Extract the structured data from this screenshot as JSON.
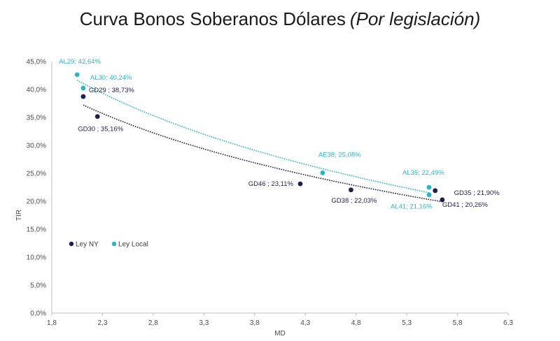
{
  "title": "Curva Bonos Soberanos Dólares",
  "subtitle": "(Por legislación)",
  "colors": {
    "ny": "#1c1f4f",
    "local": "#29b4c8",
    "axis": "#bfbfbf"
  },
  "chart_data": {
    "type": "scatter",
    "title": "Curva Bonos Soberanos Dólares (Por legislación)",
    "xlabel": "MD",
    "ylabel": "TIR",
    "xlim": [
      1.8,
      6.3
    ],
    "ylim": [
      0,
      45
    ],
    "x_ticks": [
      "1,8",
      "2,3",
      "2,8",
      "3,3",
      "3,8",
      "4,3",
      "4,8",
      "5,3",
      "5,8",
      "6,3"
    ],
    "y_ticks": [
      "0,0%",
      "5,0%",
      "10,0%",
      "15,0%",
      "20,0%",
      "25,0%",
      "30,0%",
      "35,0%",
      "40,0%",
      "45,0%"
    ],
    "legend_position": "left-middle",
    "grid": false,
    "series": [
      {
        "name": "Ley NY",
        "color": "#1c1f4f",
        "trendline": "dotted",
        "points": [
          {
            "x": 2.11,
            "y": 38.73,
            "label": "GD29 ; 38,73%"
          },
          {
            "x": 2.25,
            "y": 35.16,
            "label": "GD30 ; 35,16%"
          },
          {
            "x": 4.25,
            "y": 23.11,
            "label": "GD46 ; 23,11%"
          },
          {
            "x": 4.75,
            "y": 22.03,
            "label": "GD38 ; 22,03%"
          },
          {
            "x": 5.58,
            "y": 21.9,
            "label": "GD35 ; 21,90%"
          },
          {
            "x": 5.65,
            "y": 20.26,
            "label": "GD41 ; 20,26%"
          }
        ]
      },
      {
        "name": "Ley Local",
        "color": "#29b4c8",
        "trendline": "dotted",
        "points": [
          {
            "x": 2.05,
            "y": 42.64,
            "label": "AL29; 42,64%"
          },
          {
            "x": 2.11,
            "y": 40.24,
            "label": "AL30; 40,24%"
          },
          {
            "x": 4.47,
            "y": 25.08,
            "label": "AE38; 25,08%"
          },
          {
            "x": 5.52,
            "y": 22.49,
            "label": "AL35; 22,49%"
          },
          {
            "x": 5.52,
            "y": 21.16,
            "label": "AL41; 21,16%"
          }
        ]
      }
    ]
  }
}
